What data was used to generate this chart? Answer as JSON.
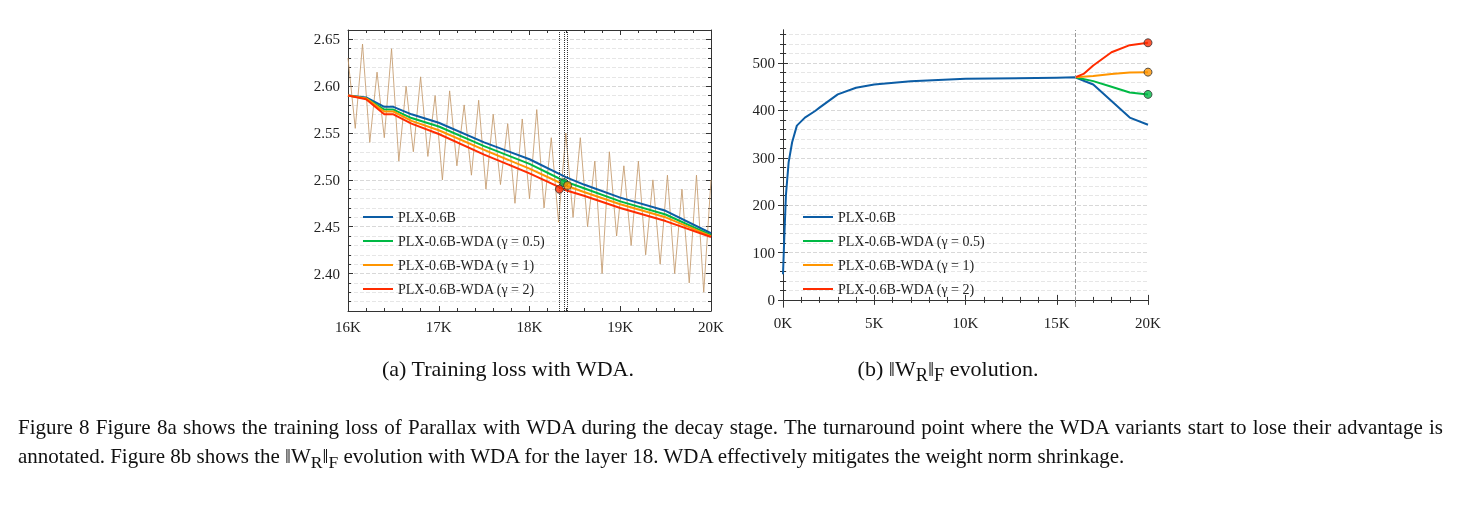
{
  "chart_data": [
    {
      "type": "line",
      "title": "(a)    Training loss with WDA.",
      "annotations": [
        "Figure 8    Figure 8a shows the training loss of Parallax with WDA during the decay stage. The turnaround point where the WDA variants start to lose their advantage is annotated. Figure 8b shows the ‖W$_{R}$‖$_{F}$ evolution with WDA for the layer 18. WDA effectively mitigates the weight norm shrinkage."
      ],
      "xlim": [
        16000,
        20000
      ],
      "xticks": [
        {
          "value": 16000,
          "label": "16K"
        },
        {
          "value": 17000,
          "label": "17K"
        },
        {
          "value": 18000,
          "label": "18K"
        },
        {
          "value": 19000,
          "label": "19K"
        },
        {
          "value": 20000,
          "label": "20K"
        }
      ],
      "ylim": [
        2.36,
        2.66
      ],
      "yticks": [
        {
          "value": 2.4,
          "label": "2.40"
        },
        {
          "value": 2.45,
          "label": "2.45"
        },
        {
          "value": 2.5,
          "label": "2.50"
        },
        {
          "value": 2.55,
          "label": "2.55"
        },
        {
          "value": 2.6,
          "label": "2.60"
        },
        {
          "value": 2.65,
          "label": "2.65"
        }
      ],
      "grid": "y",
      "legend": "bottom left",
      "line_style": "solid",
      "ref_lines": [
        {
          "axis": "x",
          "value": 18330,
          "color": "#333333",
          "line_style": "dotted"
        },
        {
          "axis": "x",
          "value": 18380,
          "color": "#333333",
          "line_style": "dotted"
        },
        {
          "axis": "x",
          "value": 18420,
          "color": "#333333",
          "line_style": "dotted"
        }
      ],
      "series": [
        {
          "color": "#c49a6c",
          "x": [
            16000,
            16080,
            16160,
            16240,
            16320,
            16400,
            16480,
            16560,
            16640,
            16720,
            16800,
            16880,
            16960,
            17040,
            17120,
            17200,
            17280,
            17360,
            17440,
            17520,
            17600,
            17680,
            17760,
            17840,
            17920,
            18000,
            18080,
            18160,
            18240,
            18320,
            18400,
            18480,
            18560,
            18640,
            18720,
            18800,
            18880,
            18960,
            19040,
            19120,
            19200,
            19280,
            19360,
            19440,
            19520,
            19600,
            19680,
            19760,
            19840,
            19920,
            20000
          ],
          "values": [
            2.63,
            2.555,
            2.645,
            2.54,
            2.615,
            2.545,
            2.64,
            2.52,
            2.6,
            2.53,
            2.61,
            2.525,
            2.59,
            2.5,
            2.595,
            2.515,
            2.58,
            2.505,
            2.585,
            2.49,
            2.57,
            2.495,
            2.56,
            2.475,
            2.565,
            2.48,
            2.575,
            2.47,
            2.545,
            2.455,
            2.55,
            2.46,
            2.545,
            2.45,
            2.52,
            2.4,
            2.53,
            2.44,
            2.515,
            2.43,
            2.52,
            2.42,
            2.5,
            2.41,
            2.505,
            2.4,
            2.49,
            2.39,
            2.505,
            2.38,
            2.5
          ]
        },
        {
          "name": "PLX-0.6B",
          "color": "#0c5da5",
          "x": [
            16000,
            16200,
            16400,
            16500,
            16700,
            17000,
            17500,
            18000,
            18400,
            18600,
            19000,
            19500,
            20000
          ],
          "values": [
            2.59,
            2.588,
            2.578,
            2.578,
            2.57,
            2.561,
            2.54,
            2.522,
            2.503,
            2.495,
            2.481,
            2.467,
            2.443
          ]
        },
        {
          "name": "PLX-0.6B-WDA (γ = 0.5)",
          "color": "#00b945",
          "x": [
            16000,
            16200,
            16400,
            16500,
            16700,
            17000,
            17500,
            18000,
            18400,
            18600,
            19000,
            19500,
            20000
          ],
          "values": [
            2.59,
            2.587,
            2.575,
            2.575,
            2.566,
            2.557,
            2.536,
            2.517,
            2.498,
            2.491,
            2.477,
            2.463,
            2.441
          ]
        },
        {
          "name": "PLX-0.6B-WDA (γ = 1)",
          "color": "#ff9500",
          "x": [
            16000,
            16200,
            16400,
            16500,
            16700,
            17000,
            17500,
            18000,
            18400,
            18600,
            19000,
            19500,
            20000
          ],
          "values": [
            2.59,
            2.587,
            2.573,
            2.573,
            2.563,
            2.553,
            2.532,
            2.512,
            2.494,
            2.487,
            2.474,
            2.46,
            2.44
          ]
        },
        {
          "name": "PLX-0.6B-WDA (γ = 2)",
          "color": "#ff2c00",
          "x": [
            16000,
            16200,
            16400,
            16500,
            16700,
            17000,
            17500,
            18000,
            18400,
            18600,
            19000,
            19500,
            20000
          ],
          "values": [
            2.59,
            2.586,
            2.57,
            2.57,
            2.56,
            2.549,
            2.527,
            2.507,
            2.489,
            2.483,
            2.47,
            2.456,
            2.439
          ]
        },
        {
          "type": "scatter",
          "marker": "circle",
          "x": [
            18330,
            18380,
            18420
          ],
          "values": [
            2.49,
            2.497,
            2.494
          ],
          "colors": [
            "#ff2c00",
            "#00b945",
            "#ff9500"
          ]
        }
      ]
    },
    {
      "type": "line",
      "title": "(b)    ‖W$_{R}$‖$_{F}$ evolution.",
      "xlim": [
        0,
        20000
      ],
      "xticks": [
        {
          "value": 0,
          "label": "0K"
        },
        {
          "value": 5000,
          "label": "5K"
        },
        {
          "value": 10000,
          "label": "10K"
        },
        {
          "value": 15000,
          "label": "15K"
        },
        {
          "value": 20000,
          "label": "20K"
        }
      ],
      "ylim": [
        -15,
        570
      ],
      "yticks": [
        0,
        100,
        200,
        300,
        400,
        500
      ],
      "grid": "y",
      "legend": "bottom left",
      "line_style": "solid",
      "ref_lines": [
        {
          "axis": "x",
          "value": 16000,
          "color": "#999999",
          "line_style": "dashed"
        }
      ],
      "series": [
        {
          "name": "PLX-0.6B",
          "color": "#0c5da5",
          "x": [
            0,
            70,
            160,
            310,
            500,
            760,
            1200,
            1760,
            2000,
            3000,
            4000,
            5000,
            7000,
            10000,
            15000,
            16000,
            17000,
            18000,
            19000,
            20000
          ],
          "values": [
            54,
            131,
            221,
            291,
            333,
            368,
            385,
            399,
            406,
            434,
            448,
            455,
            462,
            467,
            469,
            470,
            455,
            420,
            385,
            370
          ]
        },
        {
          "name": "PLX-0.6B-WDA (γ = 0.5)",
          "color": "#00b945",
          "x": [
            16000,
            17000,
            18000,
            19000,
            20000
          ],
          "values": [
            470,
            462,
            450,
            438,
            434
          ]
        },
        {
          "name": "PLX-0.6B-WDA (γ = 1)",
          "color": "#ff9500",
          "x": [
            16000,
            17000,
            18000,
            19000,
            20000
          ],
          "values": [
            470,
            473,
            477,
            480,
            481
          ]
        },
        {
          "name": "PLX-0.6B-WDA (γ = 2)",
          "color": "#ff2c00",
          "x": [
            16000,
            16500,
            17000,
            18000,
            19000,
            20000
          ],
          "values": [
            470,
            478,
            495,
            523,
            538,
            543
          ]
        },
        {
          "type": "scatter",
          "marker": "circle",
          "x": [
            20000,
            20000,
            20000
          ],
          "values": [
            543,
            481,
            434
          ],
          "colors": [
            "#ff2c00",
            "#ff9500",
            "#00b945"
          ]
        }
      ]
    }
  ]
}
